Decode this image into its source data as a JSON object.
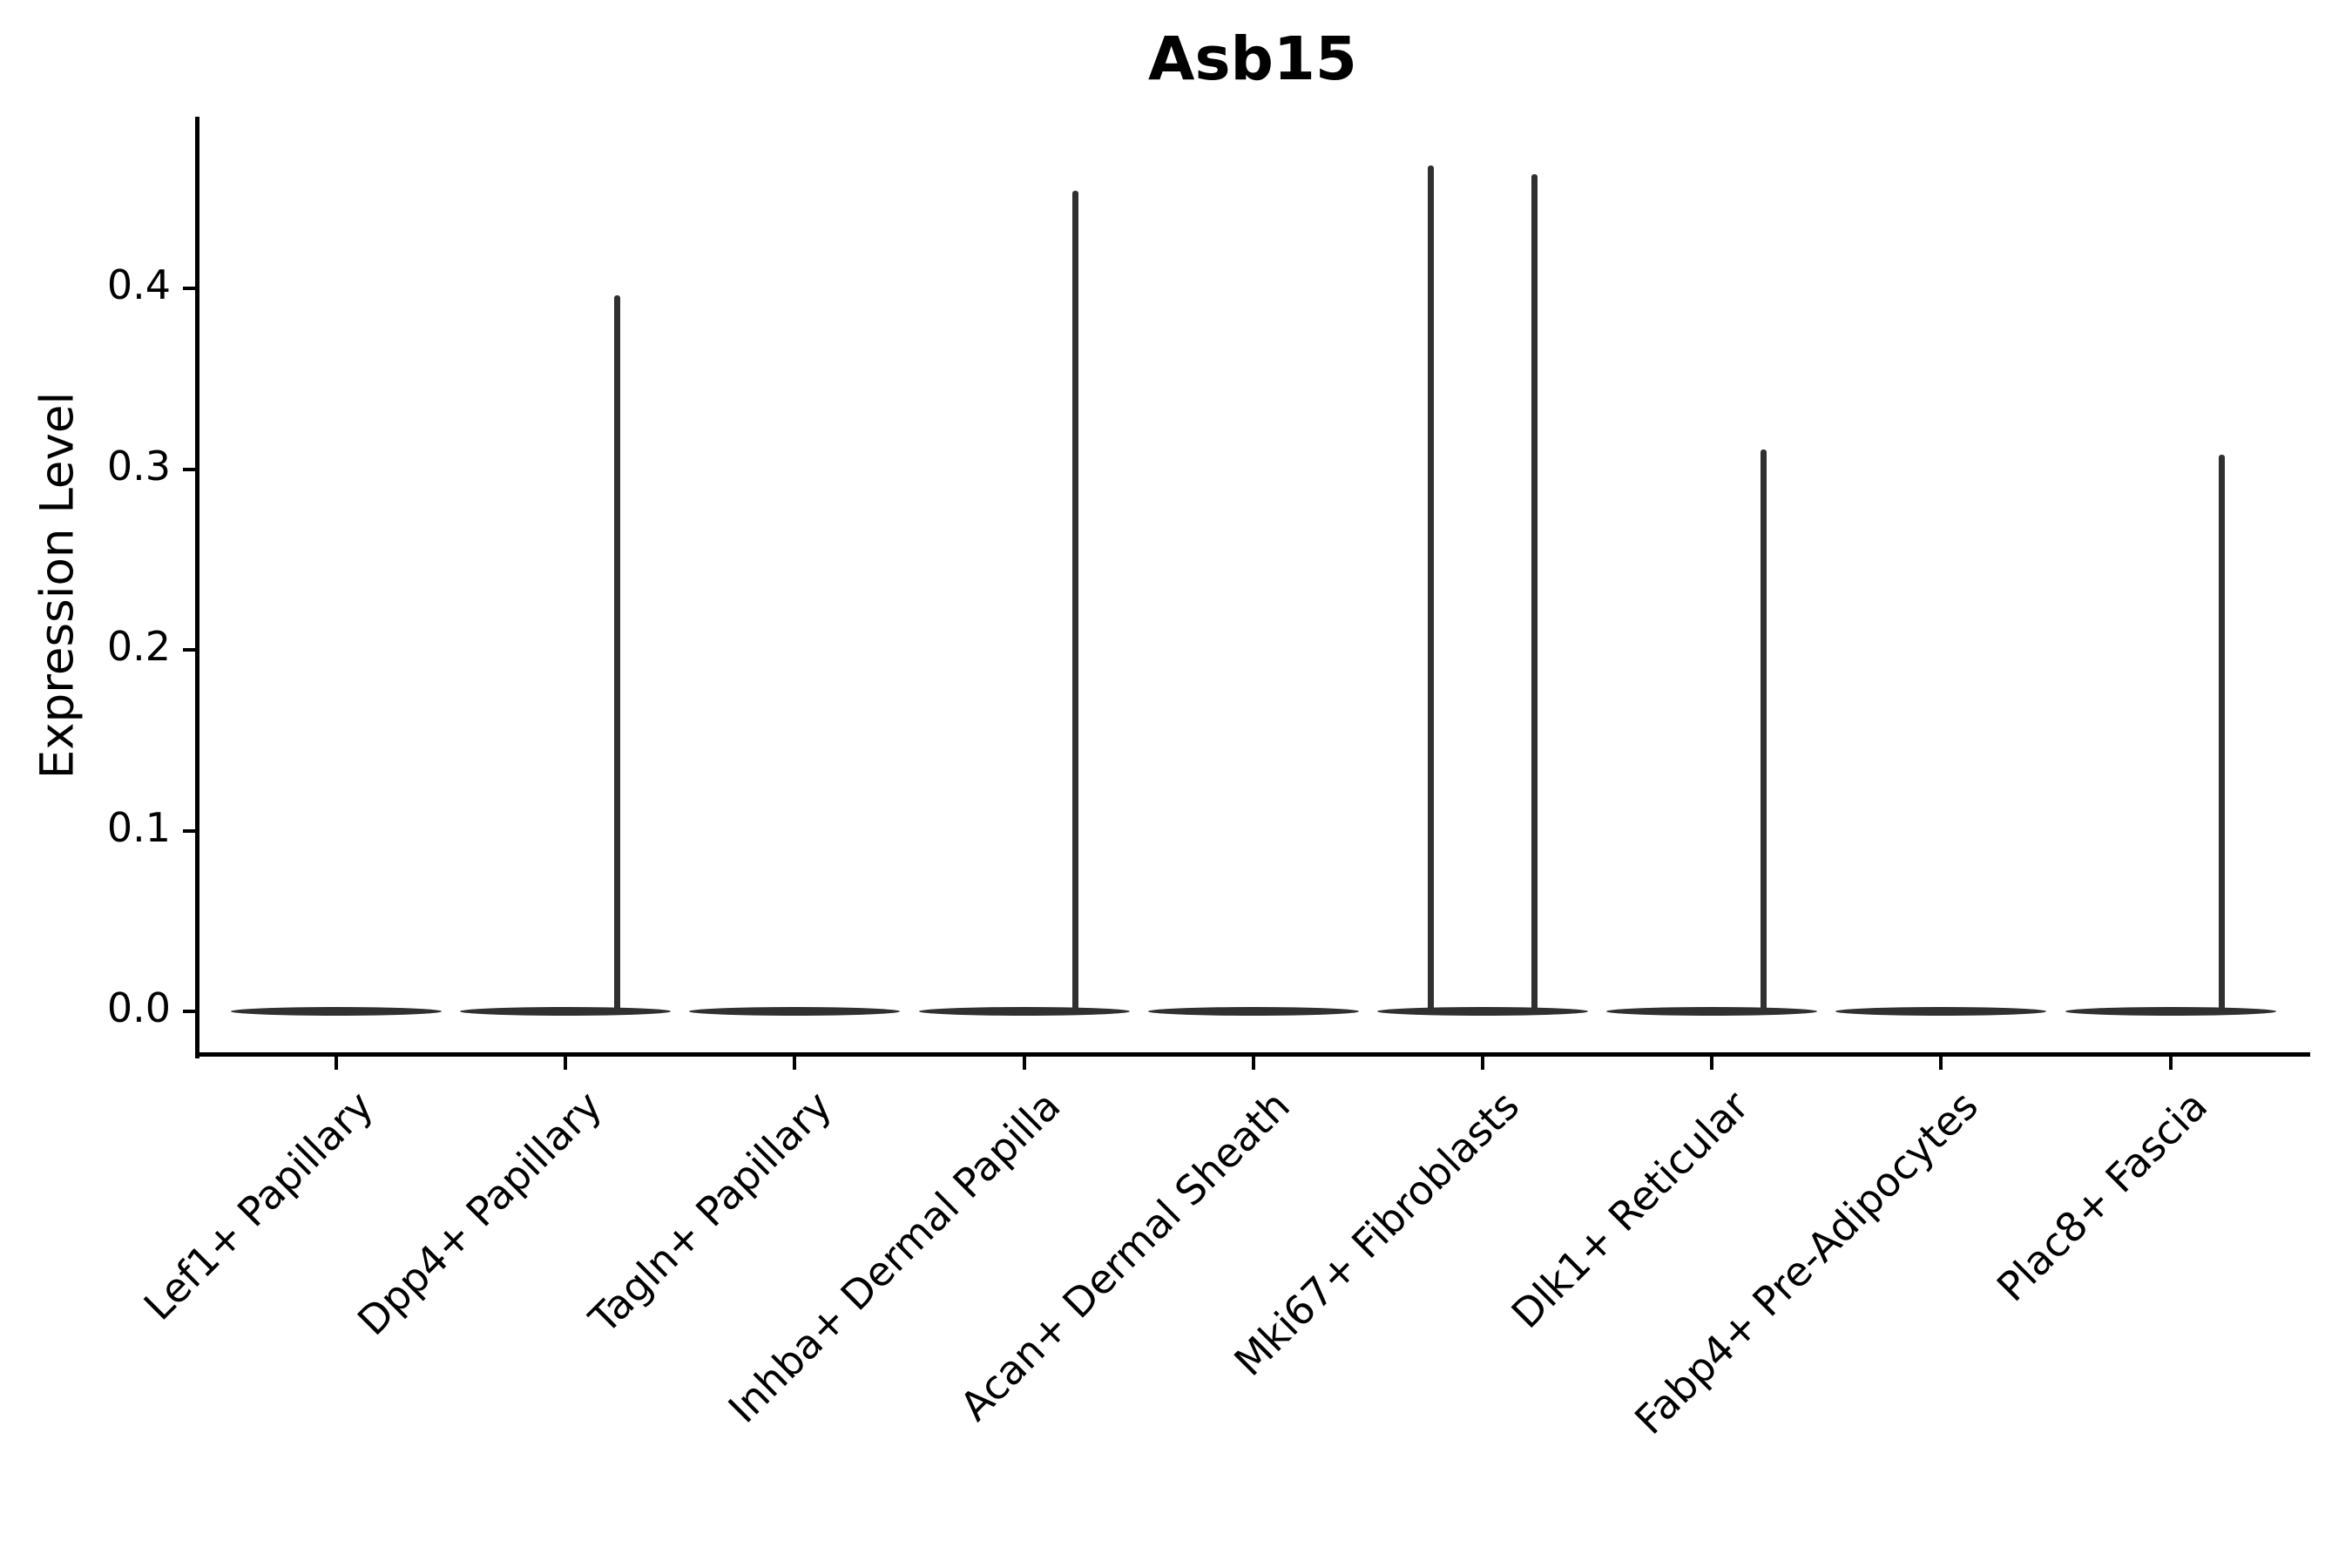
{
  "title": "Asb15",
  "ylabel": "Expression Level",
  "chart_data": {
    "type": "violin",
    "title": "Asb15",
    "xlabel": "",
    "ylabel": "Expression Level",
    "categories": [
      "Lef1+ Papillary",
      "Dpp4+ Papillary",
      "Tagln+ Papillary",
      "Inhba+ Dermal Papilla",
      "Acan+ Dermal Sheath",
      "Mki67+ Fibroblasts",
      "Dlk1+ Reticular",
      "Fabp4+ Pre-Adipocytes",
      "Plac8+ Fascia"
    ],
    "yticks": [
      "0.0",
      "0.1",
      "0.2",
      "0.3",
      "0.4"
    ],
    "ytick_values": [
      0.0,
      0.1,
      0.2,
      0.3,
      0.4
    ],
    "ylim": [
      -0.024,
      0.495
    ],
    "grid": false,
    "legend": "none",
    "violin_color": "#303030",
    "axis_color": "#000000",
    "series": [
      {
        "name": "Lef1+ Papillary",
        "max_expression": 0.0,
        "spikes": []
      },
      {
        "name": "Dpp4+ Papillary",
        "max_expression": 0.396,
        "spikes": [
          {
            "offset": 0.225,
            "value": 0.396
          }
        ]
      },
      {
        "name": "Tagln+ Papillary",
        "max_expression": 0.0,
        "spikes": []
      },
      {
        "name": "Inhba+ Dermal Papilla",
        "max_expression": 0.454,
        "spikes": [
          {
            "offset": 0.225,
            "value": 0.454
          }
        ]
      },
      {
        "name": "Acan+ Dermal Sheath",
        "max_expression": 0.0,
        "spikes": []
      },
      {
        "name": "Mki67+ Fibroblasts",
        "max_expression": 0.468,
        "spikes": [
          {
            "offset": -0.225,
            "value": 0.468
          },
          {
            "offset": 0.225,
            "value": 0.463
          }
        ]
      },
      {
        "name": "Dlk1+ Reticular",
        "max_expression": 0.311,
        "spikes": [
          {
            "offset": 0.225,
            "value": 0.311
          }
        ]
      },
      {
        "name": "Fabp4+ Pre-Adipocytes",
        "max_expression": 0.0,
        "spikes": []
      },
      {
        "name": "Plac8+ Fascia",
        "max_expression": 0.308,
        "spikes": [
          {
            "offset": 0.225,
            "value": 0.308
          }
        ]
      }
    ]
  }
}
